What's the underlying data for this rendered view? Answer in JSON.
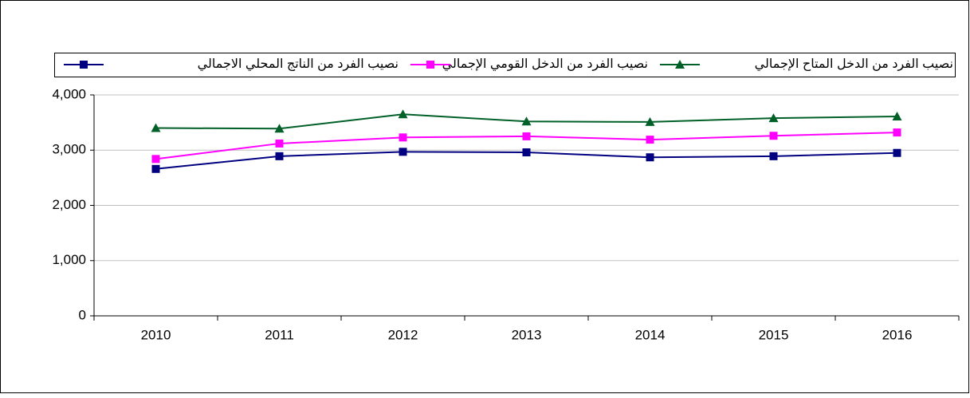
{
  "chart_data": {
    "type": "line",
    "categories": [
      "2010",
      "2011",
      "2012",
      "2013",
      "2014",
      "2015",
      "2016"
    ],
    "series": [
      {
        "name": "نصيب الفرد من الدخل المتاح  الإجمالي",
        "color": "#006028",
        "marker": "triangle",
        "values": [
          3400,
          3390,
          3650,
          3520,
          3510,
          3580,
          3610
        ]
      },
      {
        "name": "نصيب الفرد من الدخل القومي الإجمالي",
        "color": "#ff00ff",
        "marker": "square",
        "values": [
          2840,
          3120,
          3230,
          3250,
          3190,
          3260,
          3320
        ]
      },
      {
        "name": "نصيب الفرد من الناتج المحلي الاجمالي",
        "color": "#000080",
        "marker": "square",
        "values": [
          2660,
          2890,
          2970,
          2960,
          2870,
          2890,
          2950
        ]
      }
    ],
    "ylim": [
      0,
      4000
    ],
    "yticks": [
      0,
      {
        "value": 1000,
        "label": "1,000"
      },
      {
        "value": 2000,
        "label": "2,000"
      },
      {
        "value": 3000,
        "label": "3,000"
      },
      {
        "value": 4000,
        "label": "4,000"
      }
    ],
    "grid": true
  }
}
